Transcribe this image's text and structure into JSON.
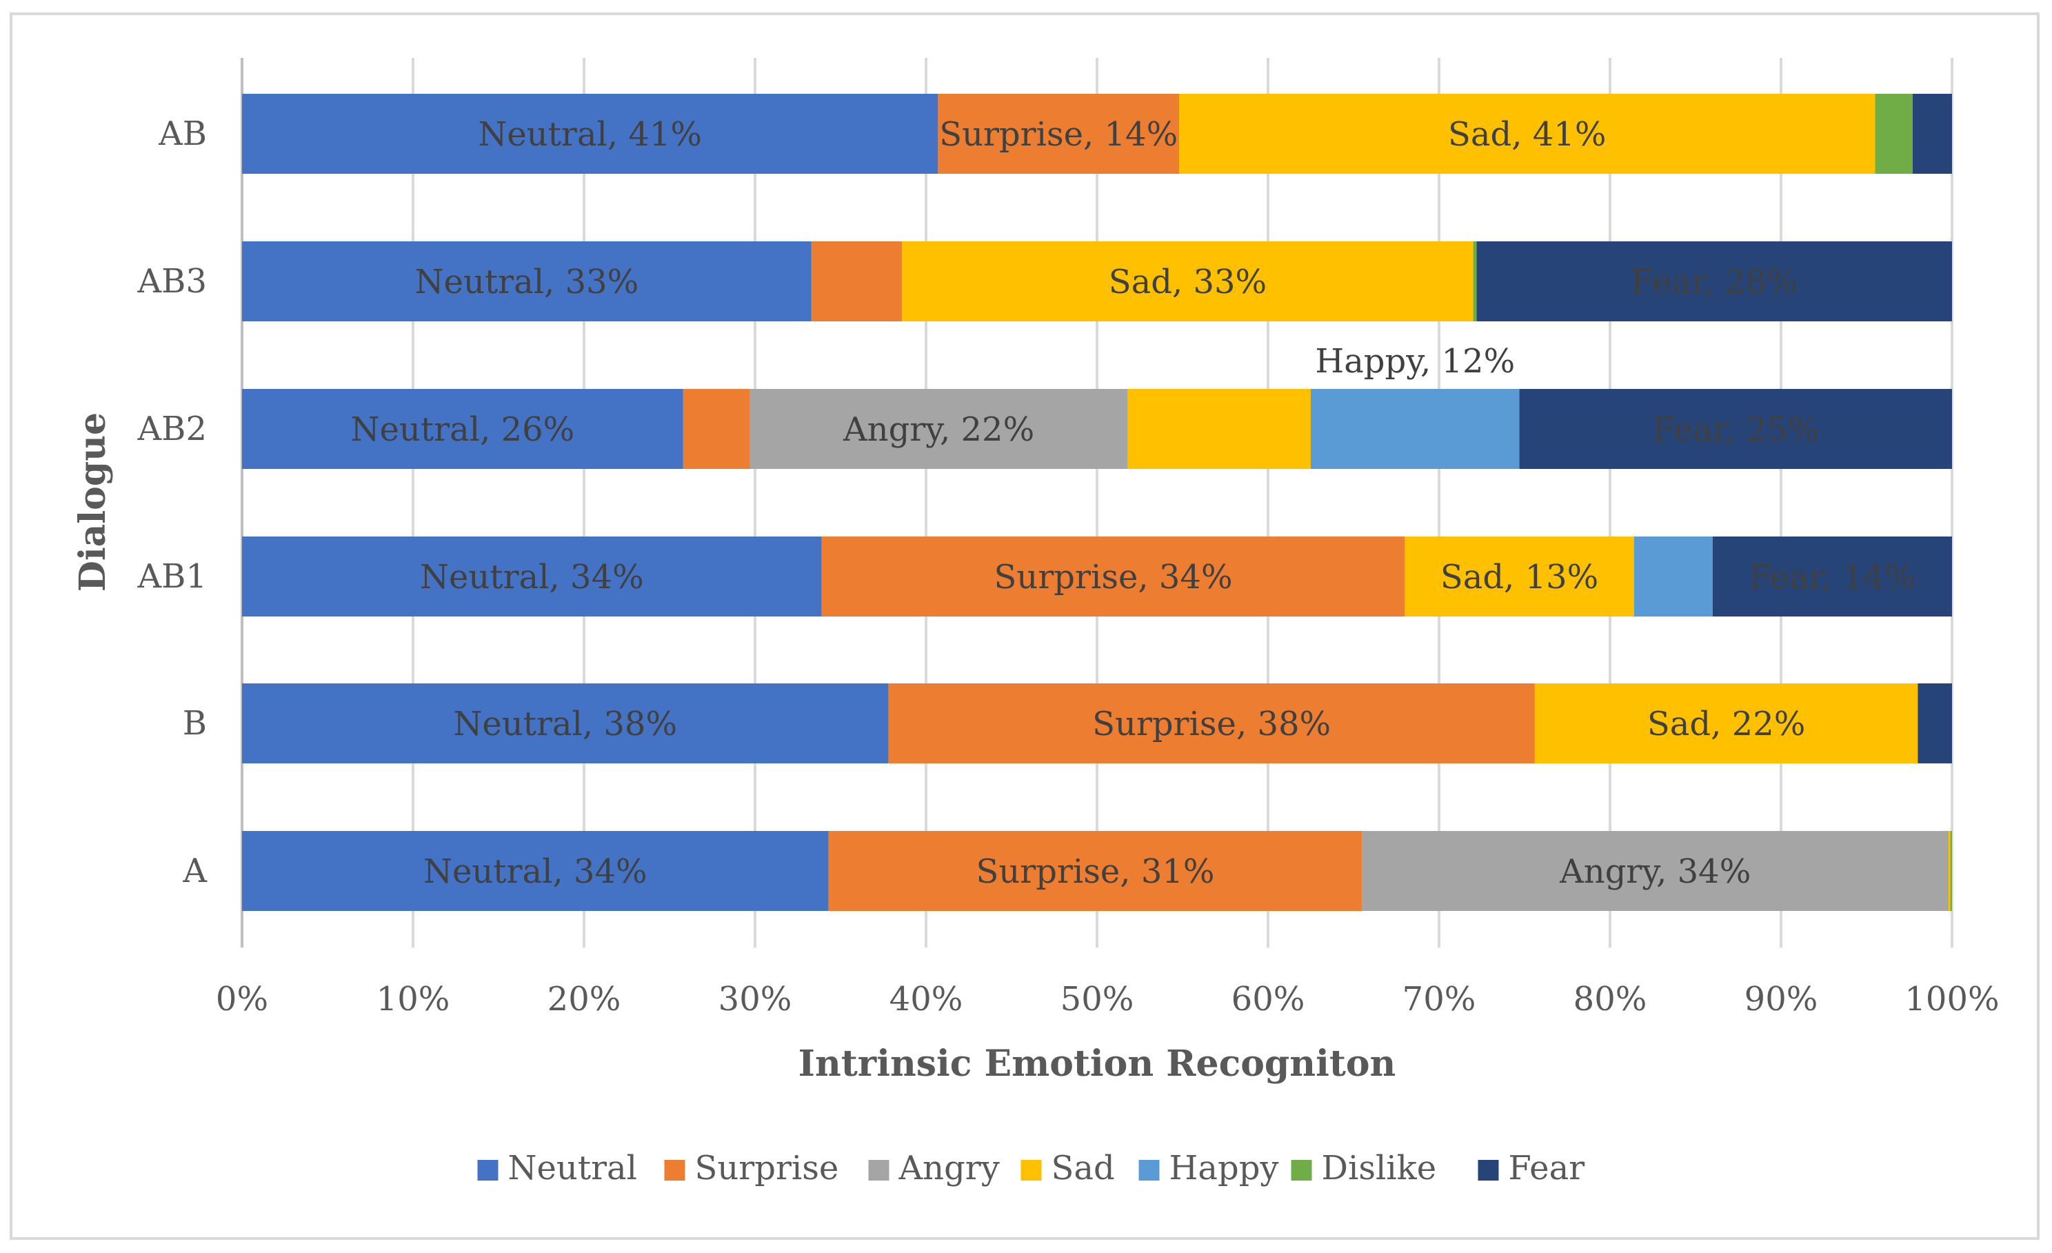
{
  "chart_data": {
    "type": "bar",
    "orientation": "horizontal",
    "stacked": "percent",
    "title": "",
    "xlabel": "Intrinsic Emotion Recogniton",
    "ylabel": "Dialogue",
    "xlim": [
      0,
      100
    ],
    "xticks": [
      "0%",
      "10%",
      "20%",
      "30%",
      "40%",
      "50%",
      "60%",
      "70%",
      "80%",
      "90%",
      "100%"
    ],
    "grid": true,
    "legend_position": "bottom",
    "categories": [
      "AB",
      "AB3",
      "AB2",
      "AB1",
      "B",
      "A"
    ],
    "series": [
      {
        "name": "Neutral",
        "color": "#4472C4",
        "values": [
          40.7,
          33.3,
          25.8,
          33.9,
          37.8,
          34.3
        ]
      },
      {
        "name": "Surprise",
        "color": "#ED7D31",
        "values": [
          14.1,
          5.3,
          3.9,
          34.1,
          37.8,
          31.2
        ]
      },
      {
        "name": "Angry",
        "color": "#A5A5A5",
        "values": [
          0,
          0,
          22.1,
          0,
          0,
          34.3
        ]
      },
      {
        "name": "Sad",
        "color": "#FFC000",
        "values": [
          40.7,
          33.4,
          10.7,
          13.4,
          22.4,
          0.1
        ]
      },
      {
        "name": "Happy",
        "color": "#5B9BD5",
        "values": [
          0,
          0,
          12.2,
          4.6,
          0,
          0
        ]
      },
      {
        "name": "Dislike",
        "color": "#70AD47",
        "values": [
          2.2,
          0.2,
          0,
          0,
          0,
          0.1
        ]
      },
      {
        "name": "Fear",
        "color": "#264478",
        "values": [
          2.3,
          27.8,
          25.3,
          14.0,
          2.0,
          0
        ]
      }
    ],
    "data_labels": [
      {
        "row": 0,
        "series": 0,
        "text": "Neutral, 41%"
      },
      {
        "row": 0,
        "series": 1,
        "text": "Surprise, 14%"
      },
      {
        "row": 0,
        "series": 3,
        "text": "Sad, 41%"
      },
      {
        "row": 1,
        "series": 0,
        "text": "Neutral, 33%"
      },
      {
        "row": 1,
        "series": 3,
        "text": "Sad, 33%"
      },
      {
        "row": 1,
        "series": 6,
        "text": "Fear, 28%"
      },
      {
        "row": 2,
        "series": 0,
        "text": "Neutral, 26%"
      },
      {
        "row": 2,
        "series": 2,
        "text": "Angry, 22%"
      },
      {
        "row": 2,
        "series": 4,
        "text": "Happy, 12%",
        "position": "above"
      },
      {
        "row": 2,
        "series": 6,
        "text": "Fear, 25%"
      },
      {
        "row": 3,
        "series": 0,
        "text": "Neutral, 34%"
      },
      {
        "row": 3,
        "series": 1,
        "text": "Surprise, 34%"
      },
      {
        "row": 3,
        "series": 3,
        "text": "Sad, 13%"
      },
      {
        "row": 3,
        "series": 6,
        "text": "Fear, 14%"
      },
      {
        "row": 4,
        "series": 0,
        "text": "Neutral, 38%"
      },
      {
        "row": 4,
        "series": 1,
        "text": "Surprise, 38%"
      },
      {
        "row": 4,
        "series": 3,
        "text": "Sad, 22%"
      },
      {
        "row": 5,
        "series": 0,
        "text": "Neutral, 34%"
      },
      {
        "row": 5,
        "series": 1,
        "text": "Surprise, 31%"
      },
      {
        "row": 5,
        "series": 2,
        "text": "Angry, 34%"
      }
    ]
  }
}
